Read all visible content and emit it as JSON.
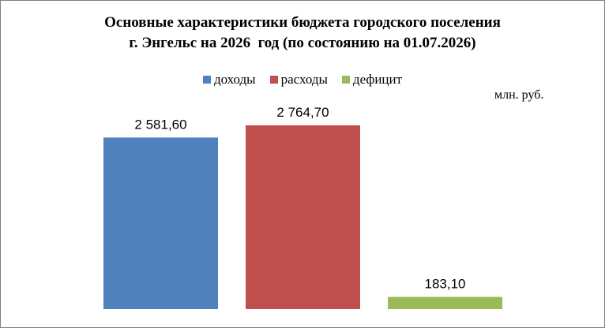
{
  "chart_data": {
    "type": "bar",
    "title_lines": [
      "Основные характеристики бюджета городского поселения",
      "г. Энгельс на 2026  год (по состоянию на 01.07.2026)"
    ],
    "unit_label": "млн. руб.",
    "legend_position": "top",
    "grid": false,
    "ylim": [
      0,
      2764.7
    ],
    "series": [
      {
        "name": "доходы",
        "value": 2581.6,
        "label": "2 581,60",
        "color": "#4f81bd"
      },
      {
        "name": "расходы",
        "value": 2764.7,
        "label": "2 764,70",
        "color": "#c0504d"
      },
      {
        "name": "дефицит",
        "value": 183.1,
        "label": "183,10",
        "color": "#9bbb59"
      }
    ]
  }
}
